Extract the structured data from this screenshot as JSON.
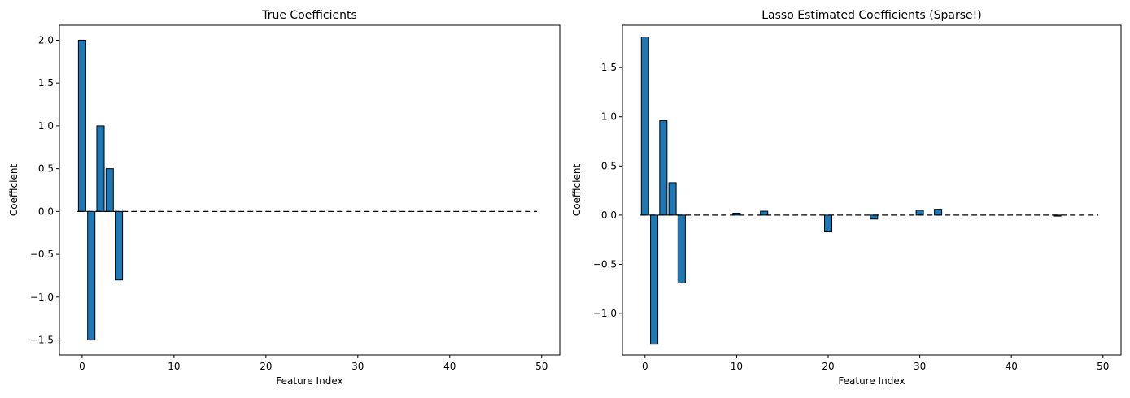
{
  "chart_data": [
    {
      "type": "bar",
      "title": "True Coefficients",
      "xlabel": "Feature Index",
      "ylabel": "Coefficient",
      "xlim": [
        -2.47,
        51.97
      ],
      "ylim": [
        -1.675,
        2.175
      ],
      "xticks": [
        0,
        10,
        20,
        30,
        40,
        50
      ],
      "xtick_labels": [
        "0",
        "10",
        "20",
        "30",
        "40",
        "50"
      ],
      "yticks": [
        -1.5,
        -1.0,
        -0.5,
        0.0,
        0.5,
        1.0,
        1.5,
        2.0
      ],
      "ytick_labels": [
        "−1.5",
        "−1.0",
        "−0.5",
        "0.0",
        "0.5",
        "1.0",
        "1.5",
        "2.0"
      ],
      "bar_color": "#1f77b4",
      "bar_edge_color": "#000000",
      "zero_line": {
        "y": 0,
        "x_range": [
          -0.5,
          49.5
        ],
        "style": "dashed",
        "color": "#000000"
      },
      "x": [
        0,
        1,
        2,
        3,
        4
      ],
      "values": [
        2.0,
        -1.5,
        1.0,
        0.5,
        -0.8
      ],
      "grid": false
    },
    {
      "type": "bar",
      "title": "Lasso Estimated Coefficients (Sparse!)",
      "xlabel": "Feature Index",
      "ylabel": "Coefficient",
      "xlim": [
        -2.47,
        51.97
      ],
      "ylim": [
        -1.42,
        1.93
      ],
      "xticks": [
        0,
        10,
        20,
        30,
        40,
        50
      ],
      "xtick_labels": [
        "0",
        "10",
        "20",
        "30",
        "40",
        "50"
      ],
      "yticks": [
        -1.0,
        -0.5,
        0.0,
        0.5,
        1.0,
        1.5
      ],
      "ytick_labels": [
        "−1.0",
        "−0.5",
        "0.0",
        "0.5",
        "1.0",
        "1.5"
      ],
      "bar_color": "#1f77b4",
      "bar_edge_color": "#000000",
      "zero_line": {
        "y": 0,
        "x_range": [
          -0.5,
          49.5
        ],
        "style": "dashed",
        "color": "#000000"
      },
      "x": [
        0,
        1,
        2,
        3,
        4,
        10,
        13,
        20,
        25,
        30,
        32,
        45
      ],
      "values": [
        1.81,
        -1.31,
        0.96,
        0.33,
        -0.69,
        0.02,
        0.04,
        -0.17,
        -0.04,
        0.05,
        0.06,
        -0.01
      ],
      "grid": false
    }
  ]
}
